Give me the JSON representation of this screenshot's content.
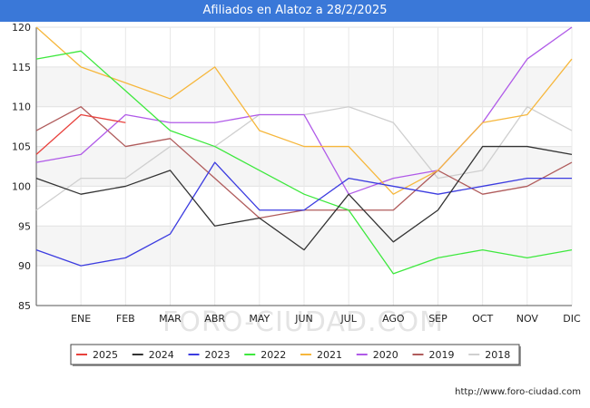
{
  "title": "Afiliados en Alatoz a 28/2/2025",
  "footer": "http://www.foro-ciudad.com",
  "watermark": "FORO-CIUDAD.COM",
  "chart_data": {
    "type": "line",
    "x": [
      "",
      "ENE",
      "FEB",
      "MAR",
      "ABR",
      "MAY",
      "JUN",
      "JUL",
      "AGO",
      "SEP",
      "OCT",
      "NOV",
      "DIC"
    ],
    "ylim": [
      85,
      120
    ],
    "yticks": [
      85,
      90,
      95,
      100,
      105,
      110,
      115,
      120
    ],
    "grid": true,
    "legend_position": "bottom",
    "series": [
      {
        "name": "2025",
        "color": "#e8413c",
        "values": [
          104,
          109,
          108,
          null,
          null,
          null,
          null,
          null,
          null,
          null,
          null,
          null,
          null
        ]
      },
      {
        "name": "2024",
        "color": "#333333",
        "values": [
          101,
          99,
          100,
          102,
          95,
          96,
          92,
          99,
          93,
          97,
          105,
          105,
          104
        ]
      },
      {
        "name": "2023",
        "color": "#3c3ce0",
        "values": [
          92,
          90,
          91,
          94,
          103,
          97,
          97,
          101,
          100,
          99,
          100,
          101,
          101
        ]
      },
      {
        "name": "2022",
        "color": "#3ee83e",
        "values": [
          116,
          117,
          112,
          107,
          105,
          102,
          99,
          97,
          89,
          91,
          92,
          91,
          92
        ]
      },
      {
        "name": "2021",
        "color": "#f6b73c",
        "values": [
          120,
          115,
          113,
          111,
          115,
          107,
          105,
          105,
          99,
          102,
          108,
          109,
          116
        ]
      },
      {
        "name": "2020",
        "color": "#b05ae8",
        "values": [
          103,
          104,
          109,
          108,
          108,
          109,
          109,
          99,
          101,
          102,
          108,
          116,
          120
        ]
      },
      {
        "name": "2019",
        "color": "#b05c5c",
        "values": [
          107,
          110,
          105,
          106,
          101,
          96,
          97,
          97,
          97,
          102,
          99,
          100,
          103
        ]
      },
      {
        "name": "2018",
        "color": "#cfcfcf",
        "values": [
          97,
          101,
          101,
          105,
          105,
          109,
          109,
          110,
          108,
          101,
          102,
          110,
          107
        ]
      }
    ]
  }
}
